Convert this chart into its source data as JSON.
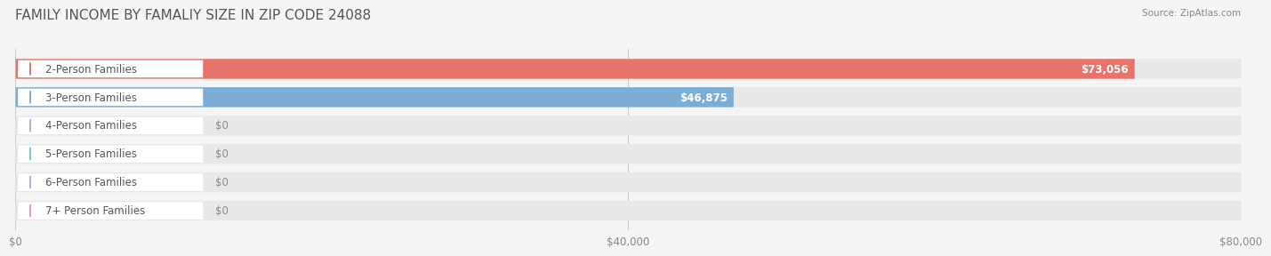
{
  "title": "FAMILY INCOME BY FAMALIY SIZE IN ZIP CODE 24088",
  "source": "Source: ZipAtlas.com",
  "categories": [
    "2-Person Families",
    "3-Person Families",
    "4-Person Families",
    "5-Person Families",
    "6-Person Families",
    "7+ Person Families"
  ],
  "values": [
    73056,
    46875,
    0,
    0,
    0,
    0
  ],
  "bar_colors": [
    "#e8736a",
    "#7aaed6",
    "#c4a8d4",
    "#6ecfca",
    "#a8b4e8",
    "#f09ab0"
  ],
  "label_colors": [
    "#e8736a",
    "#7aaed6",
    "#c4a8d4",
    "#6ecfca",
    "#a8b4e8",
    "#f09ab0"
  ],
  "value_labels": [
    "$73,056",
    "$46,875",
    "$0",
    "$0",
    "$0",
    "$0"
  ],
  "xlim": [
    0,
    80000
  ],
  "xticks": [
    0,
    40000,
    80000
  ],
  "xticklabels": [
    "$0",
    "$40,000",
    "$80,000"
  ],
  "bg_color": "#f5f5f5",
  "bar_bg_color": "#e8e8e8",
  "title_fontsize": 11,
  "label_fontsize": 8.5,
  "value_fontsize": 8.5,
  "bar_height": 0.68
}
